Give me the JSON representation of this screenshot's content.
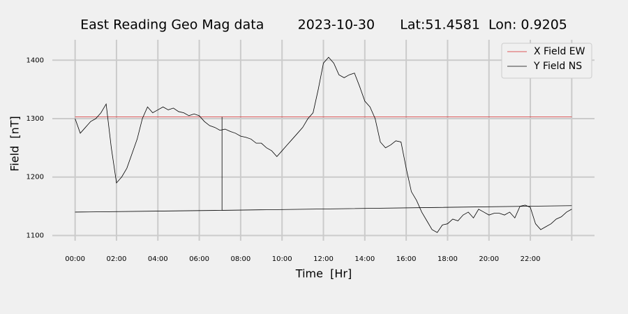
{
  "chart_data": {
    "type": "line",
    "title": "East Reading Geo Mag data        2023-10-30      Lat:51.4581  Lon: 0.9205",
    "x_label": "Time  [Hr]",
    "y_label": "Field  [nT]",
    "xlim": [
      -1.1,
      25.1
    ],
    "ylim": [
      1085,
      1429
    ],
    "xticks": [
      {
        "value": 0,
        "label": "00:00"
      },
      {
        "value": 2,
        "label": "02:00"
      },
      {
        "value": 4,
        "label": "04:00"
      },
      {
        "value": 6,
        "label": "06:00"
      },
      {
        "value": 8,
        "label": "08:00"
      },
      {
        "value": 10,
        "label": "10:00"
      },
      {
        "value": 12,
        "label": "12:00"
      },
      {
        "value": 14,
        "label": "14:00"
      },
      {
        "value": 16,
        "label": "16:00"
      },
      {
        "value": 18,
        "label": "18:00"
      },
      {
        "value": 20,
        "label": "20:00"
      },
      {
        "value": 22,
        "label": "22:00"
      },
      {
        "value": 24,
        "label": null
      }
    ],
    "yticks": [
      1100,
      1200,
      1300,
      1400
    ],
    "grid": true,
    "legend": "upper right",
    "series": [
      {
        "name": "X Field EW",
        "color": "#d62728",
        "x": [
          0,
          24
        ],
        "values": [
          1303,
          1303
        ]
      },
      {
        "name": "Y Field NS",
        "color": "#000000",
        "x": [
          0,
          0.25,
          0.5,
          0.75,
          1,
          1.25,
          1.5,
          1.75,
          2,
          2.25,
          2.5,
          2.75,
          3,
          3.25,
          3.5,
          3.75,
          4,
          4.25,
          4.5,
          4.75,
          5,
          5.25,
          5.5,
          5.75,
          6,
          6.25,
          6.5,
          6.75,
          7,
          7.25,
          7.5,
          7.75,
          8,
          8.25,
          8.5,
          8.75,
          9,
          9.25,
          9.5,
          9.75,
          10,
          10.25,
          10.5,
          10.75,
          11,
          11.25,
          11.5,
          11.75,
          12,
          12.25,
          12.5,
          12.75,
          13,
          13.25,
          13.5,
          13.75,
          14,
          14.25,
          14.5,
          14.75,
          15,
          15.25,
          15.5,
          15.75,
          16,
          16.25,
          16.5,
          16.75,
          17,
          17.25,
          17.5,
          17.75,
          18,
          18.25,
          18.5,
          18.75,
          19,
          19.25,
          19.5,
          19.75,
          20,
          20.25,
          20.5,
          20.75,
          21,
          21.25,
          21.5,
          21.75,
          22,
          22.25,
          22.5,
          22.75,
          23,
          23.25,
          23.5,
          23.75,
          24
        ],
        "values": [
          1300,
          1275,
          1285,
          1295,
          1300,
          1310,
          1325,
          1250,
          1190,
          1200,
          1215,
          1240,
          1265,
          1300,
          1320,
          1310,
          1315,
          1320,
          1315,
          1318,
          1312,
          1310,
          1305,
          1308,
          1305,
          1295,
          1288,
          1285,
          1280,
          1282,
          1278,
          1275,
          1270,
          1268,
          1265,
          1258,
          1258,
          1250,
          1245,
          1235,
          1245,
          1255,
          1265,
          1275,
          1285,
          1300,
          1310,
          1350,
          1395,
          1405,
          1395,
          1375,
          1370,
          1375,
          1378,
          1355,
          1330,
          1320,
          1300,
          1260,
          1250,
          1255,
          1262,
          1260,
          1215,
          1175,
          1160,
          1140,
          1125,
          1110,
          1105,
          1118,
          1120,
          1128,
          1125,
          1135,
          1140,
          1130,
          1145,
          1140,
          1135,
          1138,
          1138,
          1135,
          1140,
          1130,
          1150,
          1152,
          1148,
          1120,
          1110,
          1115,
          1120,
          1128,
          1132,
          1140,
          1145
        ]
      },
      {
        "color": "#000000",
        "x": [
          0,
          7.1,
          7.1,
          7.1,
          24
        ],
        "values": [
          1140,
          1143,
          1303,
          1143,
          1151
        ]
      }
    ]
  }
}
